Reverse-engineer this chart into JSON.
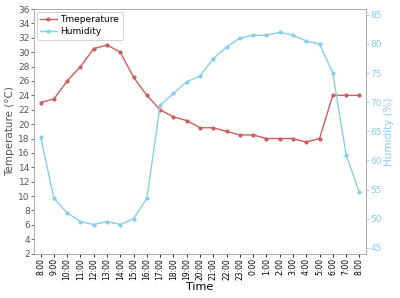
{
  "time_labels": [
    "8:00",
    "9:00",
    "10:00",
    "11:00",
    "12:00",
    "13:00",
    "14:00",
    "15:00",
    "16:00",
    "17:00",
    "18:00",
    "19:00",
    "20:00",
    "21:00",
    "22:00",
    "23:00",
    "0:00",
    "1:00",
    "2:00",
    "3:00",
    "4:00",
    "5:00",
    "6:00",
    "7:00",
    "8:00"
  ],
  "temperature": [
    23.0,
    23.5,
    26.0,
    28.0,
    30.5,
    31.0,
    30.0,
    26.5,
    24.0,
    22.0,
    21.0,
    20.5,
    19.5,
    19.5,
    19.0,
    18.5,
    18.5,
    18.0,
    18.0,
    18.0,
    17.5,
    18.0,
    24.0,
    24.0,
    24.0
  ],
  "humidity": [
    64.0,
    53.5,
    51.0,
    49.5,
    49.0,
    49.5,
    49.0,
    50.0,
    53.5,
    69.5,
    71.5,
    73.5,
    74.5,
    77.5,
    79.5,
    81.0,
    81.5,
    81.5,
    82.0,
    81.5,
    80.5,
    80.0,
    75.0,
    61.0,
    54.5
  ],
  "temp_color": "#cd5c5c",
  "humidity_color": "#87ceeb",
  "temp_label": "Tmeperature",
  "humidity_label": "Humidity",
  "xlabel": "Time",
  "ylabel_left": "Temperature (°C)",
  "ylabel_right": "Humidity (%)",
  "ylim_left": [
    2,
    36
  ],
  "ylim_right": [
    44,
    86
  ],
  "yticks_left": [
    2,
    4,
    6,
    8,
    10,
    12,
    14,
    16,
    18,
    20,
    22,
    24,
    26,
    28,
    30,
    32,
    34,
    36
  ],
  "yticks_right": [
    45,
    50,
    55,
    60,
    65,
    70,
    75,
    80,
    85
  ],
  "spine_color": "#aaaaaa",
  "tick_color": "#555555",
  "right_tick_color": "#87ceeb",
  "background_color": "#ffffff"
}
